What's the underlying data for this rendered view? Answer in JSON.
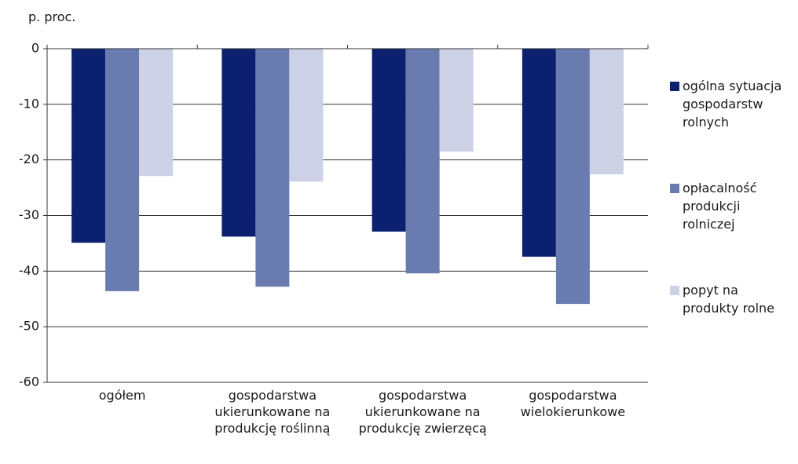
{
  "chart_data": {
    "type": "bar",
    "y_label": "p. proc.",
    "categories": [
      "ogółem",
      "gospodarstwa ukierunkowane na produkcję roślinną",
      "gospodarstwa ukierunkowane na produkcję zwierzęcą",
      "gospodarstwa wielokierunkowe"
    ],
    "series": [
      {
        "name": "ogólna sytuacja gospodarstw rolnych",
        "color": "#0b2170",
        "values": [
          -34.9,
          -33.8,
          -32.9,
          -37.4
        ]
      },
      {
        "name": "opłacalność produkcji rolniczej",
        "color": "#6a7bb0",
        "values": [
          -43.6,
          -42.8,
          -40.4,
          -45.9
        ]
      },
      {
        "name": "popyt na produkty rolne",
        "color": "#cdd1e6",
        "values": [
          -22.9,
          -23.9,
          -18.5,
          -22.6
        ]
      }
    ],
    "ylim": [
      -60,
      0
    ],
    "yticks": [
      0,
      -10,
      -20,
      -30,
      -40,
      -50,
      -60
    ],
    "grid": true,
    "legend": "right"
  }
}
